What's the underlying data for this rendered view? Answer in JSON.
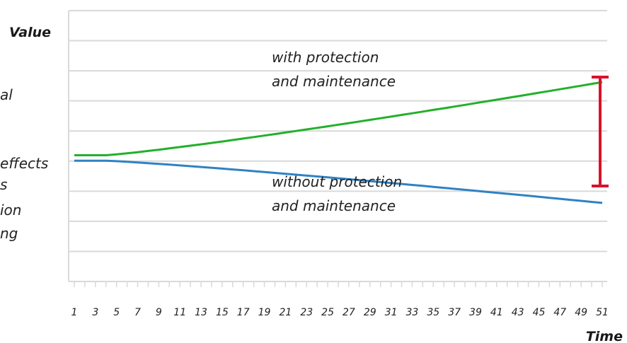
{
  "chart_data": {
    "type": "line",
    "ylabel": "Value",
    "xlabel": "Time",
    "tick_labels": [
      "1",
      "3",
      "5",
      "7",
      "9",
      "11",
      "13",
      "15",
      "17",
      "19",
      "21",
      "23",
      "25",
      "27",
      "29",
      "31",
      "33",
      "35",
      "37",
      "39",
      "41",
      "43",
      "45",
      "47",
      "49",
      "51"
    ],
    "x_range": [
      1,
      51
    ],
    "grid": true,
    "series": [
      {
        "label": "with protection and maintenance",
        "color": "#22b02a",
        "start": 46.6,
        "end": 73.6,
        "flat_until": 4
      },
      {
        "label": "without protection and maintenance",
        "color": "#2f82c4",
        "start": 44.6,
        "end": 29.0,
        "flat_until": 4
      }
    ],
    "annotation": {
      "type": "difference-bar",
      "color": "#d9122b",
      "x": 51
    },
    "side_text_fragments": [
      "al",
      "effects",
      "s",
      "ion",
      "ng"
    ]
  }
}
